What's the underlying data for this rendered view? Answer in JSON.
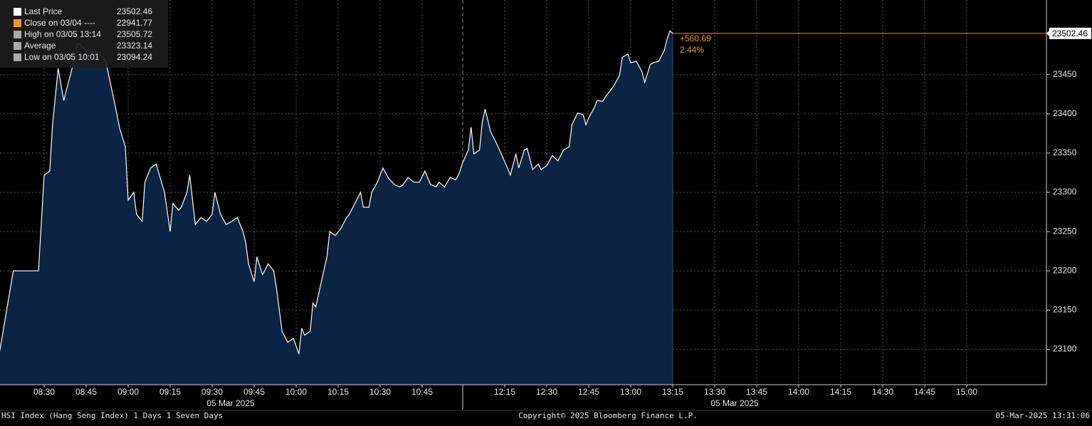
{
  "chart_data": {
    "type": "area",
    "x": [
      "08:14",
      "08:19",
      "08:28",
      "08:30",
      "08:32",
      "08:33",
      "08:35",
      "08:37",
      "08:38",
      "08:40",
      "08:42",
      "08:45",
      "08:50",
      "08:52",
      "08:55",
      "08:57",
      "08:59",
      "09:00",
      "09:02",
      "09:03",
      "09:05",
      "09:06",
      "09:08",
      "09:10",
      "09:13",
      "09:15",
      "09:16",
      "09:18",
      "09:19",
      "09:21",
      "09:22",
      "09:24",
      "09:26",
      "09:28",
      "09:30",
      "09:31",
      "09:33",
      "09:35",
      "09:37",
      "09:39",
      "09:41",
      "09:42",
      "09:43",
      "09:45",
      "09:46",
      "09:48",
      "09:50",
      "09:52",
      "09:53",
      "09:55",
      "09:57",
      "09:59",
      "10:01",
      "10:02",
      "10:03",
      "10:05",
      "10:06",
      "10:07",
      "10:09",
      "10:11",
      "10:12",
      "10:14",
      "10:16",
      "10:18",
      "10:19",
      "10:21",
      "10:23",
      "10:24",
      "10:26",
      "10:27",
      "10:29",
      "10:31",
      "10:33",
      "10:35",
      "10:37",
      "10:38",
      "10:40",
      "10:42",
      "10:44",
      "10:46",
      "10:48",
      "10:50",
      "10:51",
      "10:53",
      "10:55",
      "10:57",
      "10:58",
      "12:00",
      "12:02",
      "12:03",
      "12:04",
      "12:06",
      "12:07",
      "12:08",
      "12:10",
      "12:12",
      "12:14",
      "12:16",
      "12:17",
      "12:19",
      "12:20",
      "12:22",
      "12:23",
      "12:25",
      "12:27",
      "12:28",
      "12:30",
      "12:32",
      "12:34",
      "12:36",
      "12:38",
      "12:39",
      "12:41",
      "12:43",
      "12:44",
      "12:45",
      "12:47",
      "12:48",
      "12:50",
      "12:51",
      "12:53",
      "12:54",
      "12:56",
      "12:57",
      "12:59",
      "13:00",
      "13:02",
      "13:04",
      "13:05",
      "13:07",
      "13:08",
      "13:10",
      "13:12",
      "13:13",
      "13:14",
      "13:15"
    ],
    "series": [
      {
        "color": "#ffffff",
        "fill": "#0b2444",
        "values": [
          23095,
          23200,
          23200,
          23322,
          23327,
          23386,
          23458,
          23417,
          23431,
          23458,
          23490,
          23481,
          23476,
          23467,
          23417,
          23381,
          23358,
          23290,
          23300,
          23272,
          23263,
          23313,
          23331,
          23336,
          23300,
          23250,
          23286,
          23277,
          23281,
          23300,
          23322,
          23259,
          23268,
          23263,
          23272,
          23300,
          23272,
          23259,
          23263,
          23268,
          23250,
          23236,
          23209,
          23186,
          23218,
          23195,
          23209,
          23200,
          23177,
          23123,
          23109,
          23114,
          23094.24,
          23127,
          23118,
          23123,
          23159,
          23154,
          23186,
          23218,
          23250,
          23245,
          23254,
          23268,
          23272,
          23286,
          23300,
          23281,
          23281,
          23300,
          23313,
          23331,
          23318,
          23310,
          23307,
          23309,
          23319,
          23313,
          23313,
          23327,
          23310,
          23307,
          23313,
          23307,
          23319,
          23316,
          23322,
          23338,
          23354,
          23383,
          23349,
          23354,
          23390,
          23406,
          23377,
          23363,
          23347,
          23331,
          23322,
          23349,
          23331,
          23354,
          23356,
          23329,
          23336,
          23329,
          23334,
          23347,
          23340,
          23354,
          23358,
          23386,
          23401,
          23399,
          23386,
          23395,
          23408,
          23417,
          23416,
          23422,
          23431,
          23436,
          23449,
          23472,
          23476,
          23465,
          23467,
          23454,
          23440,
          23463,
          23465,
          23467,
          23481,
          23495,
          23505.72,
          23502.46
        ]
      }
    ],
    "ylim": [
      23055,
      23545
    ],
    "yticks": [
      23100,
      23150,
      23200,
      23250,
      23300,
      23350,
      23400,
      23450
    ],
    "xticks": [
      "08:30",
      "08:45",
      "09:00",
      "09:15",
      "09:30",
      "09:45",
      "10:00",
      "10:15",
      "10:30",
      "10:45",
      "12:15",
      "12:30",
      "12:45",
      "13:00",
      "13:15",
      "13:30",
      "13:45",
      "14:00",
      "14:15",
      "14:30",
      "14:45",
      "15:00"
    ],
    "x_dates": [
      "05 Mar 2025",
      "05 Mar 2025"
    ],
    "grid": true,
    "legend": [
      {
        "label": "Last Price",
        "value": 23502.46,
        "color": "#ffffff"
      },
      {
        "label": "Close on 03/04 ----",
        "value": 22941.77,
        "color": "#f7931e"
      },
      {
        "label": "High on 03/05 13:14",
        "value": 23505.72,
        "color": "#aaaaaa"
      },
      {
        "label": "Average",
        "value": 23323.14,
        "color": "#aaaaaa"
      },
      {
        "label": "Low on 03/05 10:01",
        "value": 23094.24,
        "color": "#aaaaaa"
      }
    ],
    "change": {
      "value": 560.69,
      "label": "+560.69"
    },
    "change_pct": {
      "value": 2.44,
      "label": "2.44%"
    },
    "accent_color": "#f7931e",
    "footer": {
      "left": "HSI Index (Hang Seng Index) 1 Days 1 Seven Days",
      "center": "Copyright© 2025 Bloomberg Finance L.P.",
      "right": "05-Mar-2025 13:31:06"
    }
  }
}
